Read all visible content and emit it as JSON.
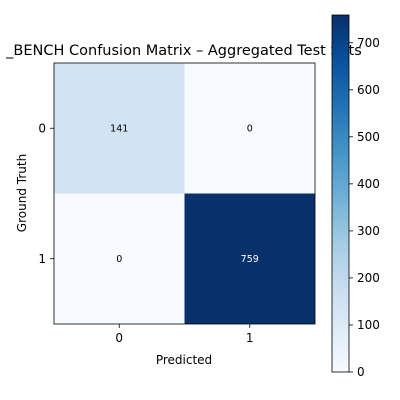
{
  "chart_data": {
    "type": "heatmap",
    "title": "_BENCH Confusion Matrix – Aggregated Test Sets",
    "xlabel": "Predicted",
    "ylabel": "Ground Truth",
    "x_categories": [
      "0",
      "1"
    ],
    "y_categories": [
      "0",
      "1"
    ],
    "values": [
      [
        141,
        0
      ],
      [
        0,
        759
      ]
    ],
    "colormap": "Blues",
    "colorbar": {
      "range": [
        0,
        759
      ],
      "ticks": [
        0,
        100,
        200,
        300,
        400,
        500,
        600,
        700
      ]
    },
    "grid": false
  }
}
